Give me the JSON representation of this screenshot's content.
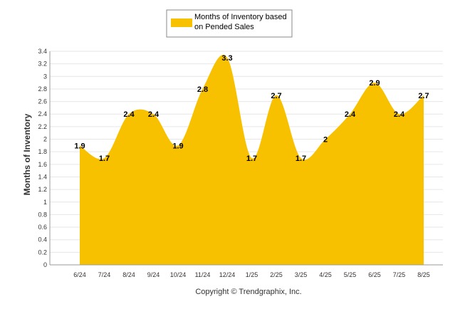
{
  "chart_data": {
    "type": "area",
    "categories": [
      "6/24",
      "7/24",
      "8/24",
      "9/24",
      "10/24",
      "11/24",
      "12/24",
      "1/25",
      "2/25",
      "3/25",
      "4/25",
      "5/25",
      "6/25",
      "7/25",
      "8/25"
    ],
    "series": [
      {
        "name": "Months of Inventory based on Pended Sales",
        "values": [
          1.9,
          1.7,
          2.4,
          2.4,
          1.9,
          2.8,
          3.3,
          1.7,
          2.7,
          1.7,
          2,
          2.4,
          2.9,
          2.4,
          2.7
        ],
        "labels": [
          "1.9",
          "1.7",
          "2.4",
          "2.4",
          "1.9",
          "2.8",
          "3.3",
          "1.7",
          "2.7",
          "1.7",
          "2",
          "2.4",
          "2.9",
          "2.4",
          "2.7"
        ],
        "color": "#f7c100"
      }
    ],
    "ylabel": "Months of Inventory",
    "ylim": [
      0,
      3.4
    ],
    "yticks": [
      "0",
      "0.2",
      "0.4",
      "0.6",
      "0.8",
      "1",
      "1.2",
      "1.4",
      "1.6",
      "1.8",
      "2",
      "2.2",
      "2.4",
      "2.6",
      "2.8",
      "3",
      "3.2",
      "3.4"
    ],
    "grid": true,
    "legend": {
      "position": "top-center",
      "line1": "Months of Inventory based",
      "line2": "on Pended Sales"
    },
    "footer": "Copyright © Trendgraphix, Inc."
  }
}
